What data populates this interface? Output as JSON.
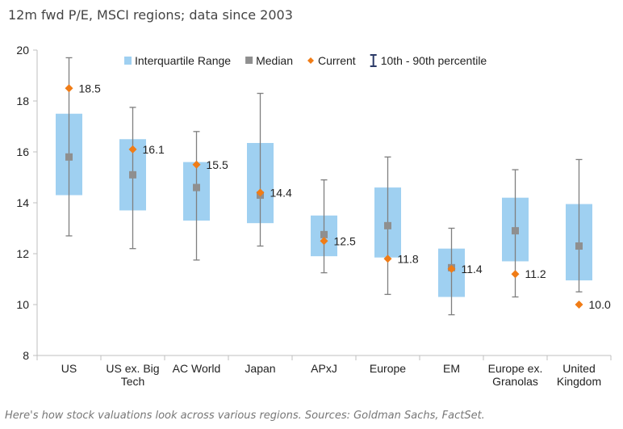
{
  "header": {
    "subtitle": "12m fwd P/E, MSCI regions; data since 2003"
  },
  "caption": "Here's how stock valuations look across various regions. Sources: Goldman Sachs, FactSet.",
  "colors": {
    "iqr": "#9fd0f1",
    "median": "#8f8f8f",
    "current": "#f07c16",
    "whisker": "#7f7f7f",
    "axis": "#bfbfbf"
  },
  "chart_data": {
    "type": "box",
    "title": "",
    "xlabel": "",
    "ylabel": "",
    "ylim": [
      8,
      20
    ],
    "yticks": [
      8,
      10,
      12,
      14,
      16,
      18,
      20
    ],
    "grid": false,
    "legend_position": "top",
    "legend": [
      {
        "key": "iqr",
        "label": "Interquartile Range"
      },
      {
        "key": "median",
        "label": "Median"
      },
      {
        "key": "current",
        "label": "Current"
      },
      {
        "key": "whisker",
        "label": "10th - 90th percentile"
      }
    ],
    "categories": [
      [
        "US"
      ],
      [
        "US ex. Big",
        "Tech"
      ],
      [
        "AC World"
      ],
      [
        "Japan"
      ],
      [
        "APxJ"
      ],
      [
        "Europe"
      ],
      [
        "EM"
      ],
      [
        "Europe ex.",
        "Granolas"
      ],
      [
        "United",
        "Kingdom"
      ]
    ],
    "p10": [
      12.7,
      12.2,
      11.75,
      12.3,
      11.25,
      10.4,
      9.6,
      10.3,
      10.5
    ],
    "q1": [
      14.3,
      13.7,
      13.3,
      13.2,
      11.9,
      11.85,
      10.3,
      11.7,
      10.95
    ],
    "median": [
      15.8,
      15.1,
      14.6,
      14.3,
      12.75,
      13.1,
      11.45,
      12.9,
      12.3
    ],
    "q3": [
      17.5,
      16.5,
      15.6,
      16.35,
      13.5,
      14.6,
      12.2,
      14.2,
      13.95
    ],
    "p90": [
      19.7,
      17.75,
      16.8,
      18.3,
      14.9,
      15.8,
      13.0,
      15.3,
      15.7
    ],
    "current": [
      18.5,
      16.1,
      15.5,
      14.4,
      12.5,
      11.8,
      11.4,
      11.2,
      10.0
    ],
    "current_labels": [
      "18.5",
      "16.1",
      "15.5",
      "14.4",
      "12.5",
      "11.8",
      "11.4",
      "11.2",
      "10.0"
    ]
  }
}
